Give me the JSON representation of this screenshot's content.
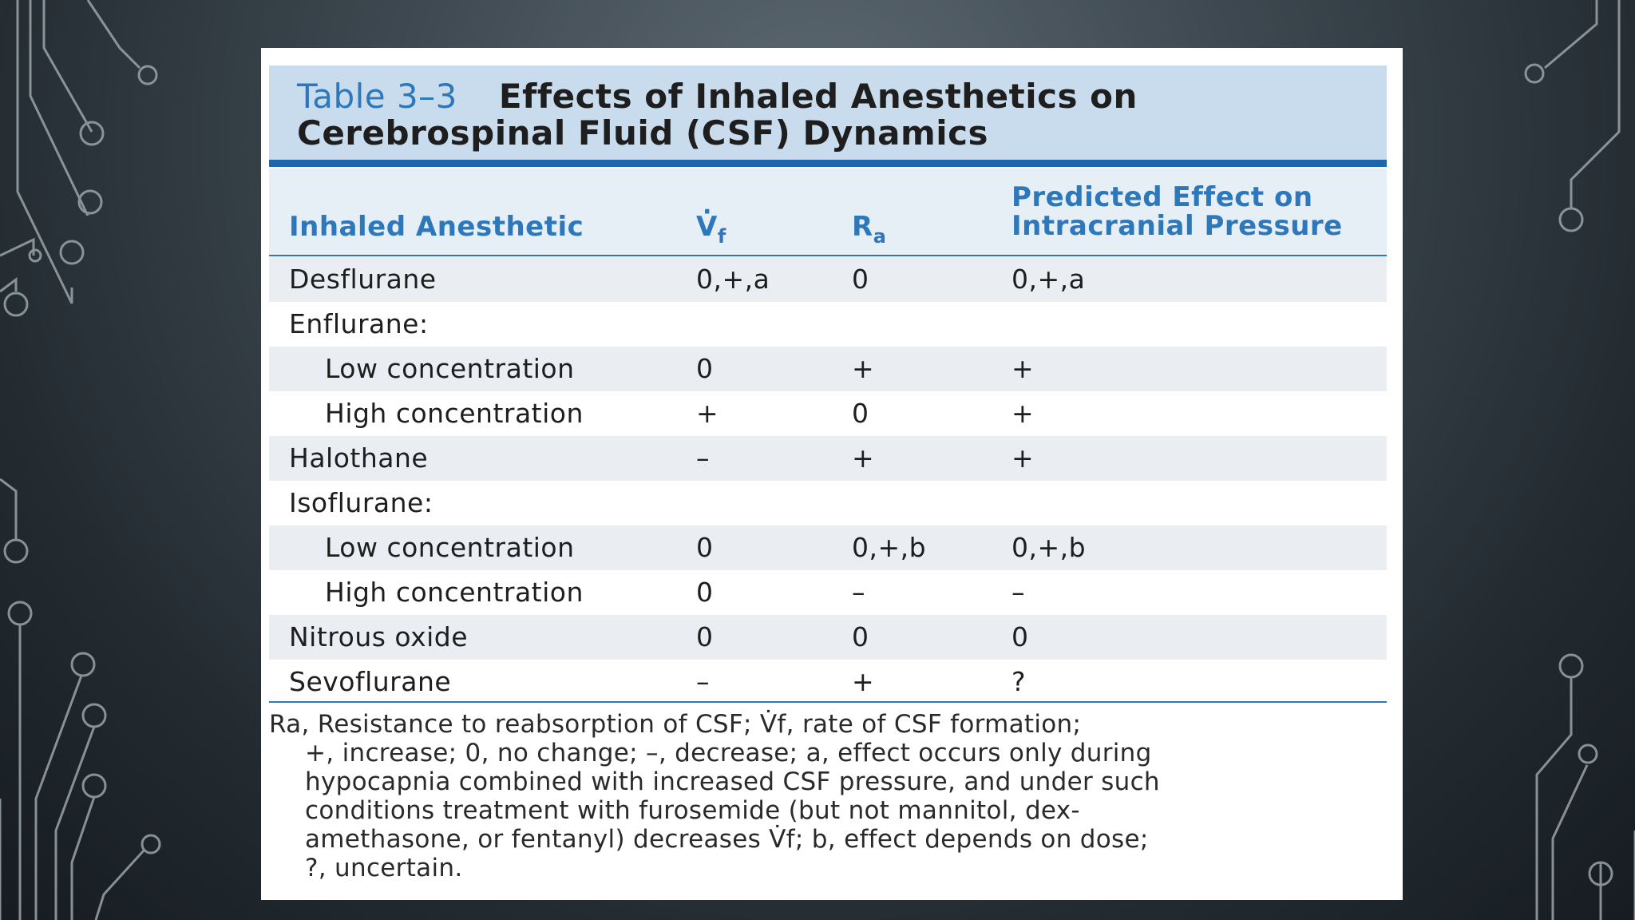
{
  "table": {
    "number": "Table 3–3",
    "title_line1": "Effects of Inhaled Anesthetics on",
    "title_line2": "Cerebrospinal Fluid (CSF) Dynamics",
    "headers": {
      "anesthetic": "Inhaled Anesthetic",
      "vf_main": "V",
      "vf_sub": "f",
      "ra_main": "R",
      "ra_sub": "a",
      "icp_line1": "Predicted Effect on",
      "icp_line2": "Intracranial Pressure"
    },
    "rows": [
      {
        "name": "Desflurane",
        "vf": "0,+,a",
        "ra": "0",
        "icp": "0,+,a"
      },
      {
        "name": "Enflurane:",
        "vf": "",
        "ra": "",
        "icp": ""
      },
      {
        "name": "Low concentration",
        "vf": "0",
        "ra": "+",
        "icp": "+"
      },
      {
        "name": "High concentration",
        "vf": "+",
        "ra": "0",
        "icp": "+"
      },
      {
        "name": "Halothane",
        "vf": "–",
        "ra": "+",
        "icp": "+"
      },
      {
        "name": "Isoflurane:",
        "vf": "",
        "ra": "",
        "icp": ""
      },
      {
        "name": "Low concentration",
        "vf": "0",
        "ra": "0,+,b",
        "icp": "0,+,b"
      },
      {
        "name": "High concentration",
        "vf": "0",
        "ra": "–",
        "icp": "–"
      },
      {
        "name": "Nitrous oxide",
        "vf": "0",
        "ra": "0",
        "icp": "0"
      },
      {
        "name": "Sevoflurane",
        "vf": "–",
        "ra": "+",
        "icp": "?"
      }
    ],
    "footnote_lines": [
      "Ra, Resistance to reabsorption of CSF; V̇f, rate of CSF formation;",
      "+, increase; 0, no change; –, decrease; a, effect occurs only during",
      "hypocapnia combined with increased CSF pressure, and under such",
      "conditions treatment with furosemide (but not mannitol, dex-",
      "amethasone, or fentanyl) decreases V̇f; b, effect depends on dose;",
      "?, uncertain."
    ]
  },
  "colors": {
    "accent_blue": "#2d77bb",
    "title_band": "#c9dced",
    "row_shade": "#eaeef2"
  }
}
